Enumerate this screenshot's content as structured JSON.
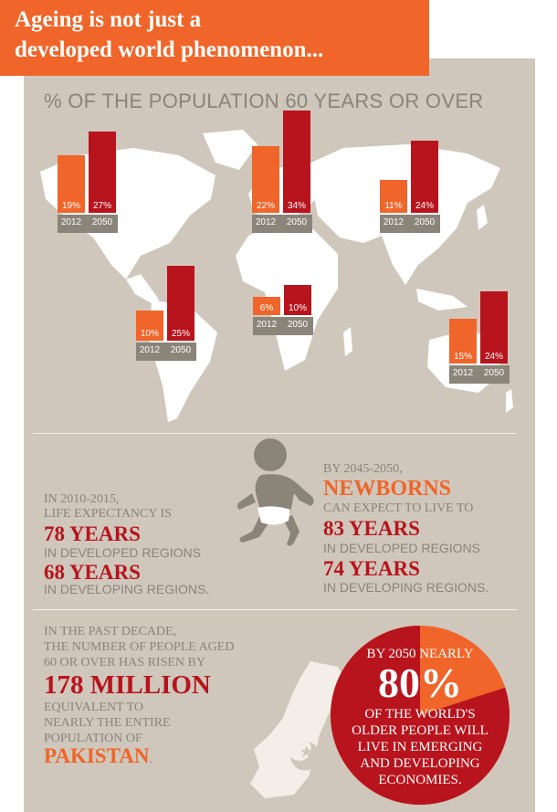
{
  "header": {
    "line1": "Ageing is not just a",
    "line2": "developed world phenomenon..."
  },
  "map_title": "% OF THE POPULATION 60 YEARS OR OVER",
  "chart_data": {
    "type": "bar",
    "title": "% OF THE POPULATION 60 YEARS OR OVER",
    "categories": [
      "2012",
      "2050"
    ],
    "unit": "%",
    "groups": [
      {
        "values": [
          19,
          27
        ],
        "labels": [
          "19%",
          "27%"
        ]
      },
      {
        "values": [
          22,
          34
        ],
        "labels": [
          "22%",
          "34%"
        ]
      },
      {
        "values": [
          11,
          24
        ],
        "labels": [
          "11%",
          "24%"
        ]
      },
      {
        "values": [
          10,
          25
        ],
        "labels": [
          "10%",
          "25%"
        ]
      },
      {
        "values": [
          6,
          10
        ],
        "labels": [
          "6%",
          "10%"
        ]
      },
      {
        "values": [
          15,
          24
        ],
        "labels": [
          "15%",
          "24%"
        ]
      }
    ],
    "colors": {
      "2012": "#f0652a",
      "2050": "#b8141d"
    }
  },
  "life": {
    "left": {
      "line1": "IN 2010-2015,",
      "line2": "LIFE EXPECTANCY IS",
      "value1": "78 YEARS",
      "sub1": "IN DEVELOPED REGIONS",
      "value2": "68 YEARS",
      "sub2": "IN DEVELOPING REGIONS."
    },
    "right": {
      "line1": "BY 2045-2050,",
      "headline": "NEWBORNS",
      "line2": "CAN EXPECT TO LIVE TO",
      "value1": "83 YEARS",
      "sub1": "IN DEVELOPED REGIONS",
      "value2": "74 YEARS",
      "sub2": "IN DEVELOPING REGIONS."
    }
  },
  "growth": {
    "l1": "IN THE PAST DECADE,",
    "l2": "THE NUMBER OF PEOPLE AGED",
    "l3": "60 OR OVER HAS RISEN BY",
    "value": "178 MILLION",
    "l4": "EQUIVALENT TO",
    "l5": "NEARLY THE ENTIRE",
    "l6": "POPULATION OF",
    "country": "PAKISTAN",
    "country_suffix": "."
  },
  "share": {
    "top": "BY 2050 NEARLY",
    "pct": "80%",
    "l1": "OF THE WORLD'S",
    "l2": "OLDER PEOPLE WILL",
    "l3": "LIVE IN EMERGING",
    "l4": "AND DEVELOPING",
    "l5": "ECONOMIES.",
    "value": 80
  },
  "colors": {
    "orange": "#f0652a",
    "red": "#b8141d",
    "beige": "#cfc7bb",
    "gray": "#8a8479"
  }
}
